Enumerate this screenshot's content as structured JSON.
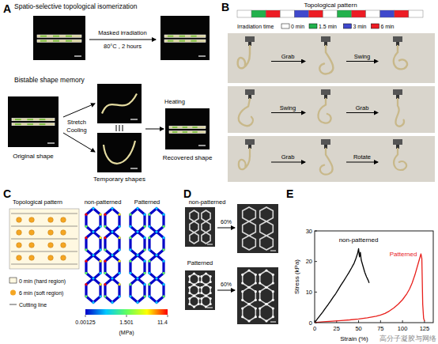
{
  "panel_a": {
    "label": "A",
    "title": "Spatio-selective topological isomerization",
    "arrow_top": "Masked irradiation",
    "arrow_bottom": "80°C , 2 hours",
    "section": "Bistable shape memory",
    "stretch": "Stretch",
    "cooling": "Cooling",
    "heating": "Heating",
    "original": "Original shape",
    "temporary": "Temporary shapes",
    "recovered": "Recovered shape"
  },
  "panel_b": {
    "label": "B",
    "title": "Topological pattern",
    "legend_title": "Irradiation time",
    "legend": [
      {
        "label": "0 min",
        "color": "#ffffff"
      },
      {
        "label": "1.5 min",
        "color": "#22b14c"
      },
      {
        "label": "3 min",
        "color": "#3f48cc"
      },
      {
        "label": "6 min",
        "color": "#ed1c24"
      }
    ],
    "pattern": [
      0,
      1,
      3,
      0,
      2,
      3,
      0,
      1,
      3,
      0,
      2,
      3,
      0
    ],
    "rows": [
      [
        "Grab",
        "Swing"
      ],
      [
        "Swing",
        "Grab"
      ],
      [
        "Grab",
        "Rotate"
      ]
    ]
  },
  "panel_c": {
    "label": "C",
    "title": "Topological pattern",
    "legend": [
      {
        "label": "0 min (hard region)",
        "color": "#fff8e1"
      },
      {
        "label": "6 min (soft region)",
        "color": "#f5a623"
      },
      {
        "label": "Cutting line",
        "color": "#555555"
      }
    ],
    "fea_labels": [
      "non-patterned",
      "Patterned"
    ],
    "colorbar": {
      "ticks": [
        0.00125,
        1.501,
        11.4
      ],
      "unit": "(MPa)",
      "colors": [
        "#0000c8",
        "#00c8ff",
        "#60ff60",
        "#ffff00",
        "#ff0000"
      ]
    }
  },
  "panel_d": {
    "label": "D",
    "top": "non-patterned",
    "bottom": "Patterned",
    "strain_labels": [
      "60%",
      "60%"
    ]
  },
  "panel_e": {
    "label": "E"
  },
  "chart_data": {
    "type": "line",
    "x_label": "Strain (%)",
    "y_label": "Stress (kPa)",
    "xlim": [
      0,
      135
    ],
    "ylim": [
      0,
      30
    ],
    "xticks": [
      0,
      25,
      50,
      75,
      100,
      125
    ],
    "yticks": [
      0,
      10,
      20,
      30
    ],
    "series": [
      {
        "name": "non-patterned",
        "color": "#000000",
        "x": [
          0,
          3,
          6,
          9,
          12,
          15,
          18,
          21,
          24,
          27,
          30,
          33,
          36,
          39,
          42,
          45,
          47,
          49,
          50,
          51,
          52,
          53,
          55,
          57,
          59,
          61,
          62
        ],
        "values": [
          0,
          1.2,
          2.3,
          3.4,
          4.6,
          5.8,
          7,
          8.3,
          9.5,
          10.9,
          12.3,
          13.6,
          15,
          16.4,
          17.9,
          19.5,
          21,
          22.8,
          24.2,
          21.5,
          23,
          20.5,
          18.5,
          16.5,
          15,
          13.8,
          13
        ]
      },
      {
        "name": "Patterned",
        "color": "#e8201c",
        "x": [
          0,
          10,
          20,
          30,
          40,
          50,
          60,
          70,
          75,
          80,
          85,
          90,
          95,
          100,
          105,
          108,
          111,
          114,
          117,
          119,
          121,
          122,
          123,
          124,
          125
        ],
        "values": [
          0,
          0.3,
          0.5,
          0.7,
          0.9,
          1.2,
          1.6,
          2.1,
          2.5,
          3,
          3.8,
          4.8,
          6,
          7.5,
          9.5,
          11,
          13,
          15.5,
          18.5,
          20.5,
          22.5,
          21,
          6,
          1.5,
          0.5
        ]
      }
    ]
  },
  "watermark": "高分子凝胶与网络"
}
